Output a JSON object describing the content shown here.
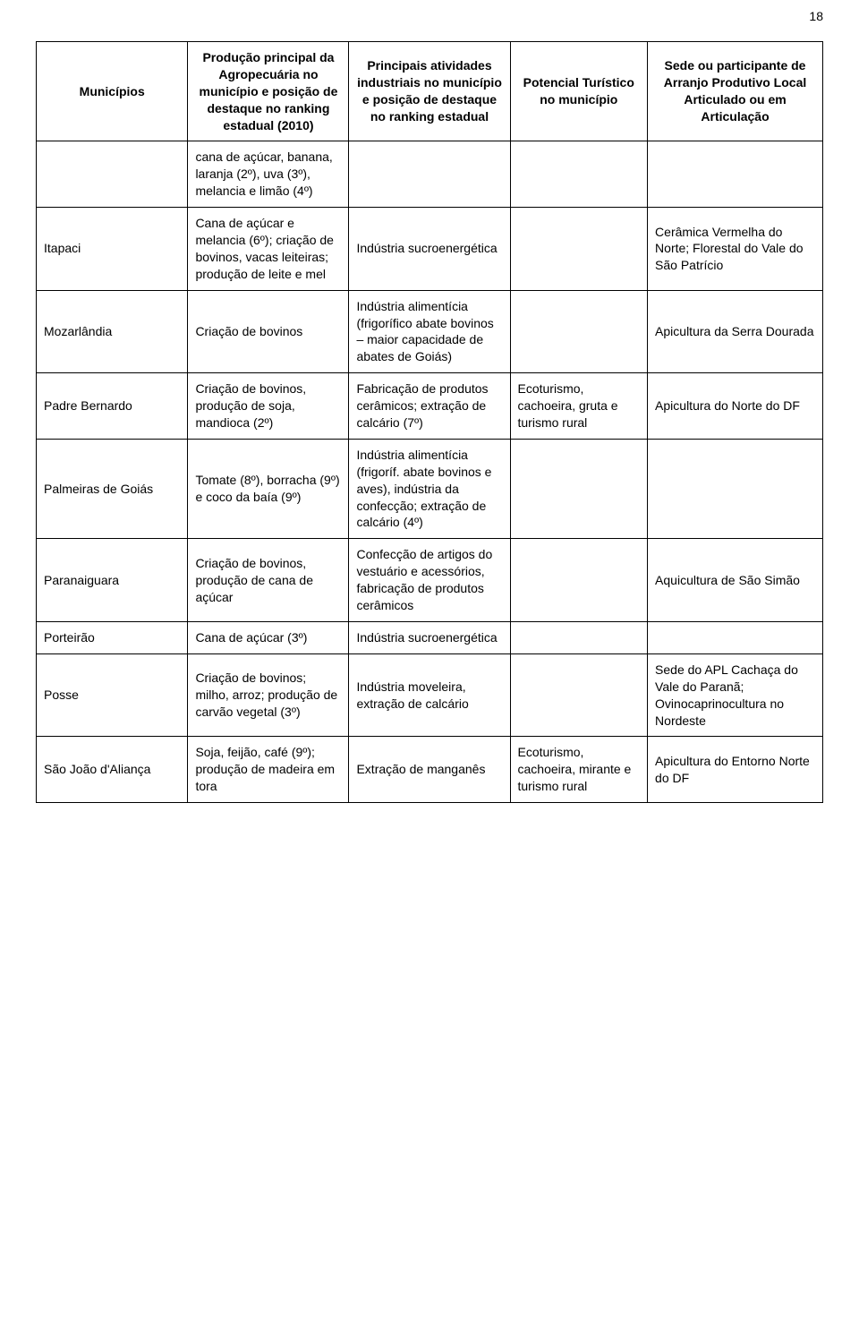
{
  "pageNumber": "18",
  "headers": {
    "col1": "Municípios",
    "col2": "Produção principal da Agropecuária no município e posição de destaque no ranking estadual (2010)",
    "col3": "Principais atividades industriais no município e posição de destaque no ranking estadual",
    "col4": "Potencial Turístico no município",
    "col5": "Sede ou participante de Arranjo Produtivo Local Articulado ou em Articulação"
  },
  "rows": [
    {
      "muni": "",
      "agro": "cana de açúcar, banana, laranja (2º), uva (3º), melancia e limão (4º)",
      "ind": "",
      "tur": "",
      "apl": ""
    },
    {
      "muni": "Itapaci",
      "agro": "Cana de açúcar e melancia (6º); criação de bovinos, vacas leiteiras; produção de leite e mel",
      "ind": "Indústria sucroenergética",
      "tur": "",
      "apl": "Cerâmica Vermelha do Norte; Florestal do Vale do São Patrício"
    },
    {
      "muni": "Mozarlândia",
      "agro": "Criação de bovinos",
      "ind": "Indústria alimentícia (frigorífico abate bovinos – maior capacidade de abates de Goiás)",
      "tur": "",
      "apl": "Apicultura da Serra Dourada"
    },
    {
      "muni": "Padre Bernardo",
      "agro": "Criação de bovinos, produção de soja, mandioca (2º)",
      "ind": "Fabricação de produtos cerâmicos; extração de calcário (7º)",
      "tur": "Ecoturismo, cachoeira, gruta e turismo rural",
      "apl": "Apicultura do Norte do DF"
    },
    {
      "muni": "Palmeiras de Goiás",
      "agro": "Tomate (8º), borracha (9º) e coco da baía (9º)",
      "ind": "Indústria alimentícia (frigoríf. abate bovinos e aves), indústria da confecção; extração de calcário (4º)",
      "tur": "",
      "apl": ""
    },
    {
      "muni": "Paranaiguara",
      "agro": "Criação de bovinos, produção de cana de açúcar",
      "ind": "Confecção de artigos do vestuário e acessórios, fabricação de produtos cerâmicos",
      "tur": "",
      "apl": "Aquicultura de São Simão"
    },
    {
      "muni": "Porteirão",
      "agro": "Cana de açúcar (3º)",
      "ind": "Indústria sucroenergética",
      "tur": "",
      "apl": ""
    },
    {
      "muni": "Posse",
      "agro": "Criação de bovinos; milho, arroz; produção de carvão vegetal (3º)",
      "ind": "Indústria moveleira, extração de calcário",
      "tur": "",
      "apl": "Sede do APL Cachaça do Vale do Paranã; Ovinocaprinocultura no Nordeste"
    },
    {
      "muni": "São João d'Aliança",
      "agro": "Soja, feijão, café (9º); produção de madeira em tora",
      "ind": "Extração de manganês",
      "tur": "Ecoturismo, cachoeira, mirante e turismo rural",
      "apl": "Apicultura do Entorno Norte do DF"
    }
  ]
}
